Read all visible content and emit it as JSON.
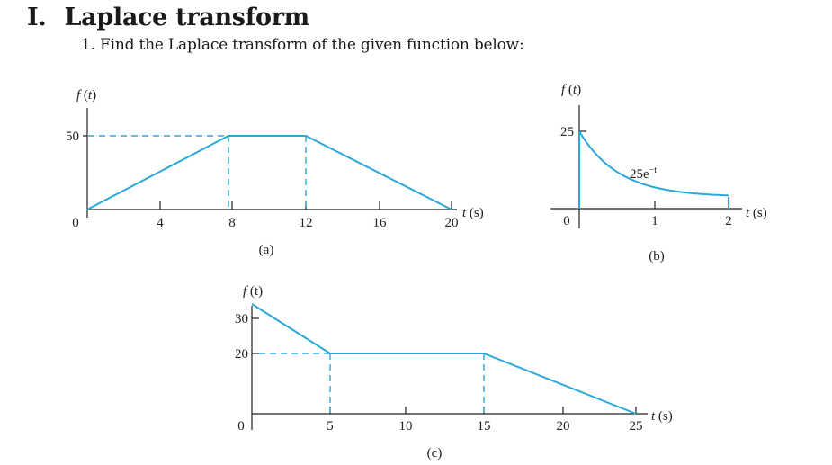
{
  "section": {
    "number": "I.",
    "title": "Laplace transform"
  },
  "problem": {
    "text": "1. Find the Laplace transform of the given function below:"
  },
  "colors": {
    "curve": "#2aa8d8",
    "axis": "#222222"
  },
  "figures": {
    "a": {
      "caption": "(a)",
      "ylabel": "f (t)",
      "xlabel": "t (s)",
      "y_tick": "50",
      "origin_label": "0",
      "x_ticks": [
        "4",
        "8",
        "12",
        "16",
        "20"
      ]
    },
    "b": {
      "caption": "(b)",
      "ylabel": "f (t)",
      "xlabel": "t (s)",
      "y_tick": "25",
      "origin_label": "0",
      "x_ticks": [
        "1",
        "2"
      ],
      "curve_label": "25e",
      "curve_label_exp": "−t"
    },
    "c": {
      "caption": "(c)",
      "ylabel": "f (t)",
      "xlabel": "t (s)",
      "y_ticks": [
        "30",
        "20"
      ],
      "origin_label": "0",
      "x_ticks": [
        "5",
        "10",
        "15",
        "20",
        "25"
      ]
    }
  },
  "chart_data": [
    {
      "type": "line",
      "title": "(a)",
      "xlabel": "t (s)",
      "ylabel": "f (t)",
      "x": [
        0,
        8,
        12,
        20
      ],
      "y": [
        0,
        50,
        50,
        0
      ],
      "xlim": [
        0,
        20
      ],
      "ylim": [
        0,
        50
      ]
    },
    {
      "type": "line",
      "title": "(b)",
      "xlabel": "t (s)",
      "ylabel": "f (t)",
      "function": "25e^{-t}",
      "x": [
        0,
        2
      ],
      "y0": 25,
      "xlim": [
        0,
        2
      ],
      "ylim": [
        0,
        25
      ]
    },
    {
      "type": "line",
      "title": "(c)",
      "xlabel": "t (s)",
      "ylabel": "f (t)",
      "x": [
        0,
        5,
        15,
        25
      ],
      "y": [
        30,
        20,
        20,
        0
      ],
      "xlim": [
        0,
        25
      ],
      "ylim": [
        0,
        30
      ]
    }
  ]
}
